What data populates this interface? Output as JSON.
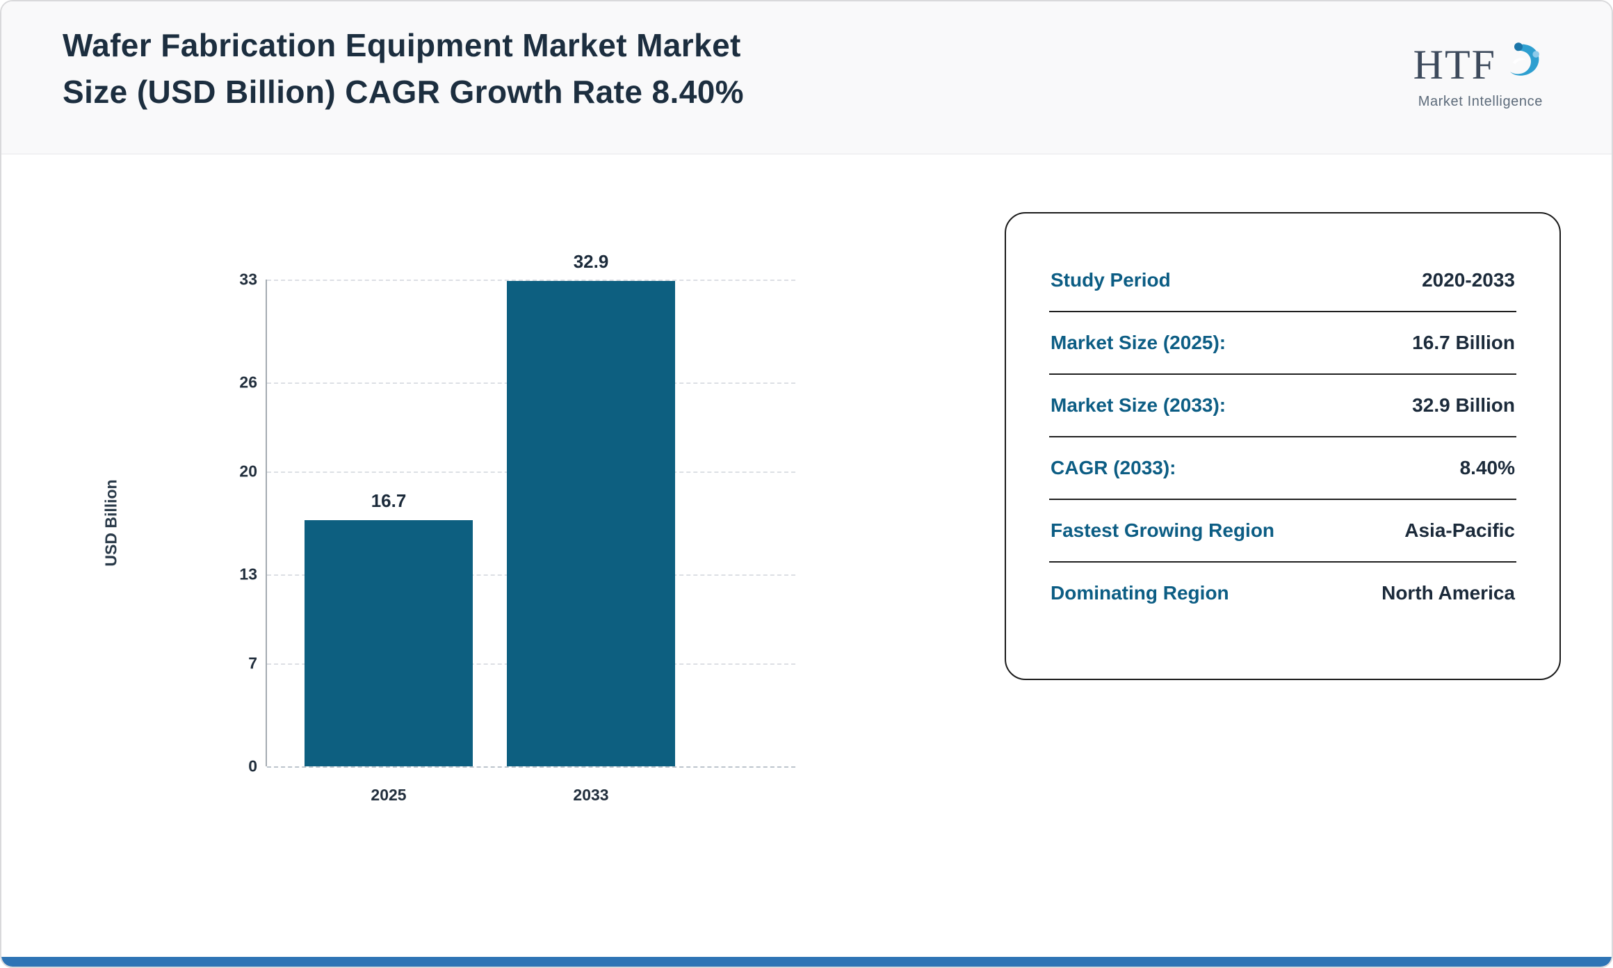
{
  "header": {
    "title_line1": "Wafer Fabrication Equipment Market Market",
    "title_line2": "Size (USD Billion) CAGR Growth Rate 8.40%",
    "logo": {
      "text": "HTF",
      "subtext": "Market Intelligence"
    }
  },
  "chart_data": {
    "type": "bar",
    "categories": [
      "2025",
      "2033"
    ],
    "values": [
      16.7,
      32.9
    ],
    "value_labels": [
      "16.7",
      "32.9"
    ],
    "title": "",
    "xlabel": "",
    "ylabel": "USD Billion",
    "yticks": [
      0,
      7,
      13,
      20,
      26,
      33
    ],
    "ylim": [
      0,
      33
    ],
    "grid": "dashed-horizontal",
    "legend": "none"
  },
  "info_card": {
    "rows": [
      {
        "label": "Study Period",
        "value": "2020-2033"
      },
      {
        "label": "Market Size (2025):",
        "value": "16.7 Billion"
      },
      {
        "label": "Market Size (2033):",
        "value": "32.9 Billion"
      },
      {
        "label": "CAGR (2033):",
        "value": "8.40%"
      },
      {
        "label": "Fastest Growing Region",
        "value": "Asia-Pacific"
      },
      {
        "label": "Dominating Region",
        "value": "North America"
      }
    ]
  },
  "colors": {
    "bar": "#0d5f80",
    "teal": "#0c5d84",
    "dark": "#1c2e3f",
    "strip": "#2e74b5",
    "logo-blue": "#2e9fd0"
  }
}
